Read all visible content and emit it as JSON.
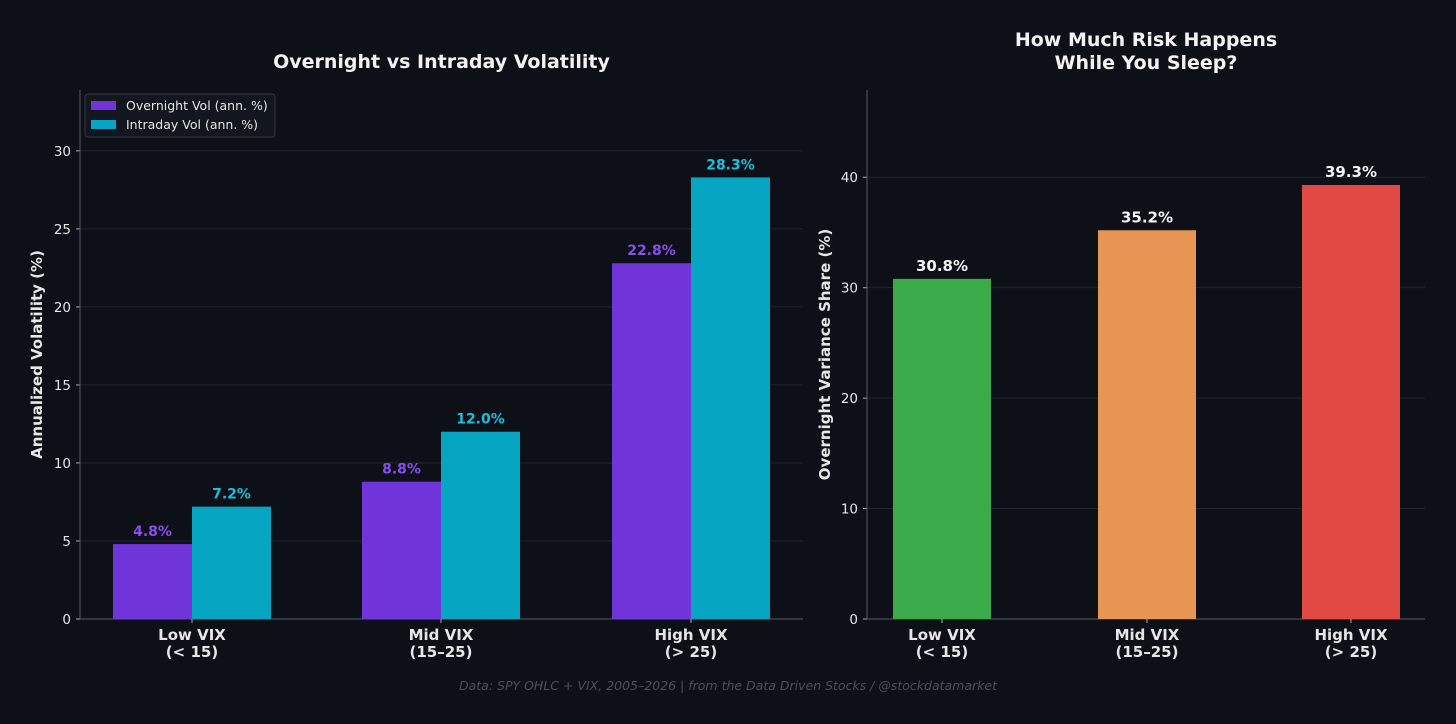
{
  "colors": {
    "background": "#0d1017",
    "overnight": "#6f35d9",
    "intraday": "#06a6c2",
    "overnight_label": "#8b4cf0",
    "intraday_label": "#18c1dd",
    "low": "#3aaa4a",
    "mid": "#e69553",
    "high": "#e04a43",
    "grid": "#1f242d",
    "text": "#e6e6e6"
  },
  "footer": "Data: SPY OHLC + VIX, 2005–2026 | from the Data Driven Stocks / @stockdatamarket",
  "chart_data": [
    {
      "type": "bar",
      "title": "Overnight vs Intraday Volatility",
      "xlabel": "",
      "ylabel": "Annualized Volatility (%)",
      "ylim": [
        0,
        33.9
      ],
      "yticks": [
        0,
        5,
        10,
        15,
        20,
        25,
        30
      ],
      "grid": true,
      "legend_position": "top-left",
      "categories": [
        "Low VIX\n(< 15)",
        "Mid VIX\n(15–25)",
        "High VIX\n(> 25)"
      ],
      "series": [
        {
          "name": "Overnight Vol (ann. %)",
          "values": [
            4.8,
            8.8,
            22.8
          ],
          "labels": [
            "4.8%",
            "8.8%",
            "22.8%"
          ]
        },
        {
          "name": "Intraday Vol (ann. %)",
          "values": [
            7.2,
            12.0,
            28.3
          ],
          "labels": [
            "7.2%",
            "12.0%",
            "28.3%"
          ]
        }
      ]
    },
    {
      "type": "bar",
      "title": "How Much Risk Happens\nWhile You Sleep?",
      "xlabel": "",
      "ylabel": "Overnight Variance Share (%)",
      "ylim": [
        0,
        47.9
      ],
      "yticks": [
        0,
        10,
        20,
        30,
        40
      ],
      "grid": true,
      "categories": [
        "Low VIX\n(< 15)",
        "Mid VIX\n(15–25)",
        "High VIX\n(> 25)"
      ],
      "values": [
        30.8,
        35.2,
        39.3
      ],
      "labels": [
        "30.8%",
        "35.2%",
        "39.3%"
      ]
    }
  ]
}
